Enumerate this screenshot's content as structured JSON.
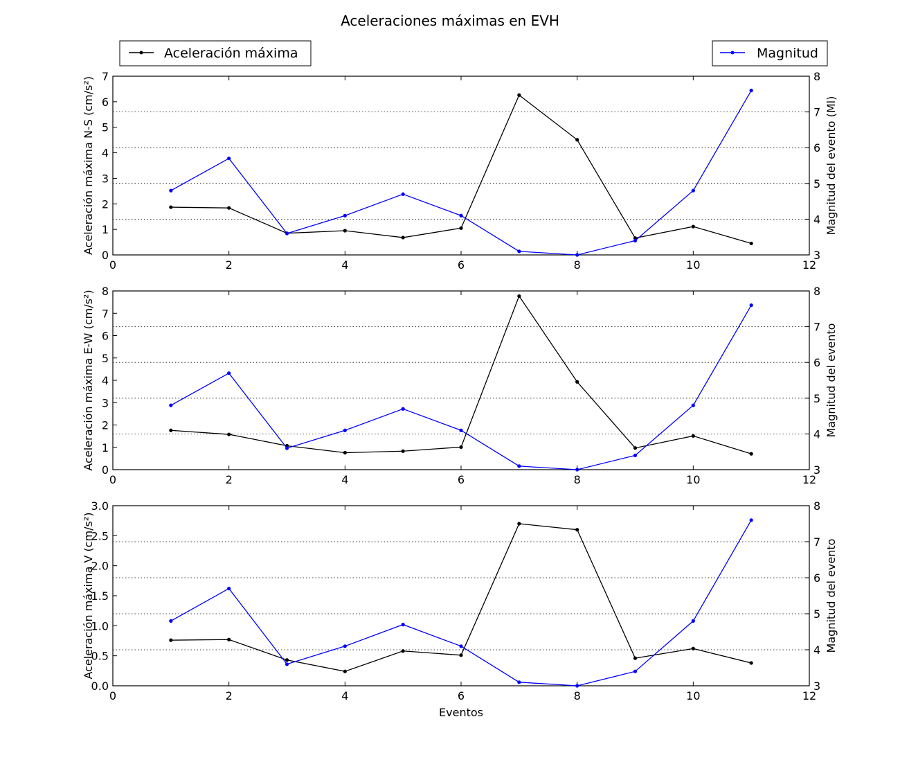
{
  "chart_data": {
    "type": "line",
    "title": "Aceleraciones máximas en EVH",
    "xlabel": "Eventos",
    "legend": {
      "left": "Aceleración máxima",
      "right": "Magnitud"
    },
    "colors": {
      "acceleration": "#000000",
      "magnitude": "#0000ff"
    },
    "x": [
      1,
      2,
      3,
      4,
      5,
      6,
      7,
      8,
      9,
      10,
      11
    ],
    "xlim": [
      0,
      12
    ],
    "xticks": [
      "0",
      "2",
      "4",
      "6",
      "8",
      "10",
      "12"
    ],
    "magnitude": {
      "name": "Magnitud",
      "values": [
        4.8,
        5.7,
        3.6,
        4.1,
        4.7,
        4.1,
        3.1,
        3.0,
        3.4,
        4.8,
        7.6
      ]
    },
    "panels": [
      {
        "ylabel": "Aceleración máxima N-S (cm/s²)",
        "y2label": "Magnitud del evento (Ml)",
        "ylim": [
          0,
          7
        ],
        "yticks": [
          "0",
          "1",
          "2",
          "3",
          "4",
          "5",
          "6",
          "7"
        ],
        "y2lim": [
          3,
          8
        ],
        "y2ticks": [
          "3",
          "4",
          "5",
          "6",
          "7",
          "8"
        ],
        "series": {
          "name": "Aceleración máxima",
          "values": [
            1.87,
            1.84,
            0.85,
            0.95,
            0.68,
            1.05,
            6.26,
            4.51,
            0.66,
            1.11,
            0.45
          ]
        }
      },
      {
        "ylabel": "Aceleración máxima E-W (cm/s²)",
        "y2label": "Magnitud del evento",
        "ylim": [
          0,
          8
        ],
        "yticks": [
          "0",
          "1",
          "2",
          "3",
          "4",
          "5",
          "6",
          "7",
          "8"
        ],
        "y2lim": [
          3,
          8
        ],
        "y2ticks": [
          "3",
          "4",
          "5",
          "6",
          "7",
          "8"
        ],
        "series": {
          "name": "Aceleración máxima",
          "values": [
            1.76,
            1.58,
            1.07,
            0.76,
            0.83,
            1.01,
            7.77,
            3.93,
            0.97,
            1.51,
            0.71
          ]
        }
      },
      {
        "ylabel": "Aceleración máxima V (cm/s²)",
        "y2label": "Magnitud del evento",
        "ylim": [
          0,
          3
        ],
        "yticks": [
          "0.0",
          "0.5",
          "1.0",
          "1.5",
          "2.0",
          "2.5",
          "3.0"
        ],
        "y2lim": [
          3,
          8
        ],
        "y2ticks": [
          "3",
          "4",
          "5",
          "6",
          "7",
          "8"
        ],
        "series": {
          "name": "Aceleración máxima",
          "values": [
            0.76,
            0.77,
            0.43,
            0.24,
            0.58,
            0.51,
            2.7,
            2.6,
            0.46,
            0.62,
            0.38
          ]
        }
      }
    ]
  }
}
